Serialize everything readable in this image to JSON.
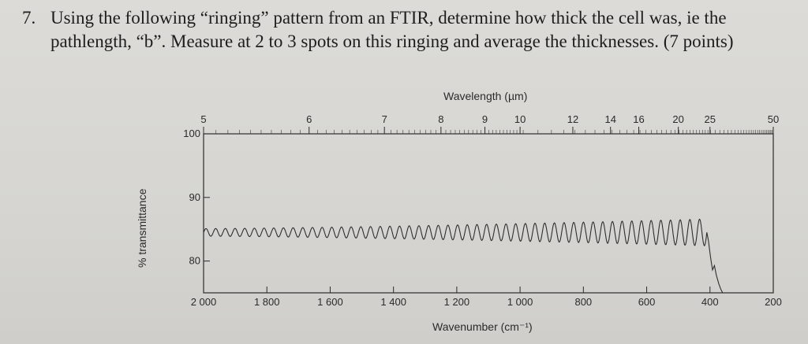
{
  "question": {
    "number": "7.",
    "text": "Using the following “ringing” pattern from an FTIR, determine how thick the cell was, ie the pathlength, “b”. Measure at 2 to 3 spots on this ringing and average the thicknesses. (7 points)"
  },
  "chart_data": {
    "type": "line",
    "title": "",
    "xlabel": "Wavenumber (cm⁻¹)",
    "x2label": "Wavelength (µm)",
    "ylabel": "% transmittance",
    "xlim": [
      2000,
      200
    ],
    "ylim": [
      75,
      100
    ],
    "x_ticks": [
      "2 000",
      "1 800",
      "1 600",
      "1 400",
      "1 200",
      "1 000",
      "800",
      "600",
      "400",
      "200"
    ],
    "x_tick_values": [
      2000,
      1800,
      1600,
      1400,
      1200,
      1000,
      800,
      600,
      400,
      200
    ],
    "x2_ticks": [
      "5",
      "6",
      "7",
      "8",
      "9",
      "10",
      "12",
      "14",
      "16",
      "20",
      "25",
      "50"
    ],
    "x2_tick_values": [
      5,
      6,
      7,
      8,
      9,
      10,
      12,
      14,
      16,
      20,
      25,
      50
    ],
    "y_ticks": [
      "100",
      "90",
      "80"
    ],
    "y_tick_values": [
      100,
      90,
      80
    ],
    "series": [
      {
        "baseline": 84.5,
        "amplitude_start": 0.6,
        "amplitude_end": 2.1,
        "fringes": 52,
        "ringing_range": [
          2000,
          410
        ],
        "drop_end": [
          360,
          75
        ]
      }
    ],
    "grid": false,
    "legend": "none"
  }
}
